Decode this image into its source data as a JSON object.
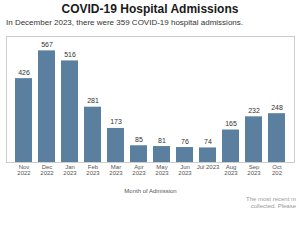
{
  "chart_data": {
    "type": "bar",
    "title": "COVID-19 Hospital Admissions",
    "subtitle": "In December 2023, there were 359 COVID-19 hospital admissions.",
    "xlabel": "Month of Admission",
    "footnote": "The most recent m\ncollected. Please",
    "categories": [
      "Nov\n2022",
      "Dec\n2022",
      "Jan\n2023",
      "Feb\n2023",
      "Mar\n2023",
      "Apr\n2023",
      "May\n2023",
      "Jun\n2023",
      "Jul 2023",
      "Aug\n2023",
      "Sep\n2023",
      "Oct\n202"
    ],
    "values": [
      426,
      567,
      516,
      281,
      173,
      85,
      81,
      76,
      74,
      165,
      232,
      248
    ],
    "color": "#5b7f9e",
    "ylim": [
      0,
      640
    ],
    "data_labels": true,
    "tick_labels": "x"
  }
}
